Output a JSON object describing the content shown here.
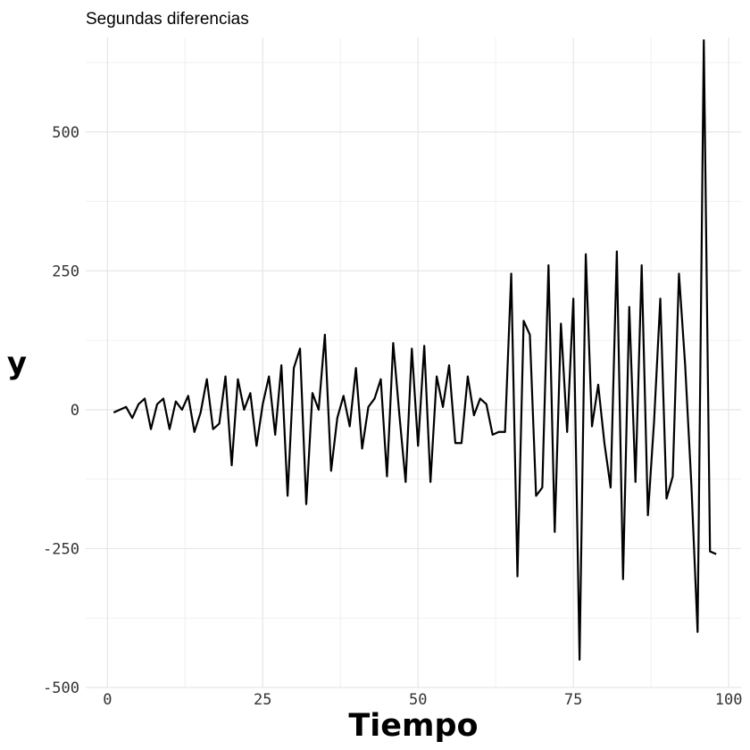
{
  "chart_data": {
    "type": "line",
    "title": "Segundas diferencias",
    "xlabel": "Tiempo",
    "ylabel": "y",
    "xlim": [
      -3.5,
      102
    ],
    "ylim": [
      -500,
      670
    ],
    "x_ticks": [
      0,
      25,
      50,
      75,
      100
    ],
    "x_tick_labels": [
      "0",
      "25",
      "50",
      "75",
      "100"
    ],
    "y_ticks": [
      -500,
      -250,
      0,
      250,
      500
    ],
    "y_tick_labels": [
      "-500",
      "-250",
      "0",
      "250",
      "500"
    ],
    "grid": true,
    "legend": "none",
    "line_color": "#000000",
    "x": [
      1,
      2,
      3,
      4,
      5,
      6,
      7,
      8,
      9,
      10,
      11,
      12,
      13,
      14,
      15,
      16,
      17,
      18,
      19,
      20,
      21,
      22,
      23,
      24,
      25,
      26,
      27,
      28,
      29,
      30,
      31,
      32,
      33,
      34,
      35,
      36,
      37,
      38,
      39,
      40,
      41,
      42,
      43,
      44,
      45,
      46,
      47,
      48,
      49,
      50,
      51,
      52,
      53,
      54,
      55,
      56,
      57,
      58,
      59,
      60,
      61,
      62,
      63,
      64,
      65,
      66,
      67,
      68,
      69,
      70,
      71,
      72,
      73,
      74,
      75,
      76,
      77,
      78,
      79,
      80,
      81,
      82,
      83,
      84,
      85,
      86,
      87,
      88,
      89,
      90,
      91,
      92,
      93,
      94,
      95,
      96,
      97,
      98
    ],
    "values": [
      -5,
      0,
      5,
      -15,
      10,
      20,
      -35,
      10,
      20,
      -35,
      15,
      0,
      25,
      -40,
      -5,
      55,
      -35,
      -25,
      60,
      -100,
      55,
      0,
      30,
      -65,
      10,
      60,
      -45,
      80,
      -155,
      75,
      110,
      -170,
      30,
      0,
      135,
      -110,
      -15,
      25,
      -30,
      75,
      -70,
      5,
      20,
      55,
      -120,
      120,
      -10,
      -130,
      110,
      -65,
      115,
      -130,
      60,
      5,
      80,
      -60,
      -60,
      60,
      -10,
      20,
      10,
      -45,
      -40,
      -40,
      245,
      -300,
      160,
      135,
      -155,
      -140,
      260,
      -220,
      155,
      -40,
      200,
      -450,
      280,
      -30,
      45,
      -60,
      -140,
      285,
      -305,
      185,
      -130,
      260,
      -190,
      -20,
      200,
      -160,
      -120,
      245,
      80,
      -135,
      -400,
      665,
      -255,
      -260
    ]
  }
}
